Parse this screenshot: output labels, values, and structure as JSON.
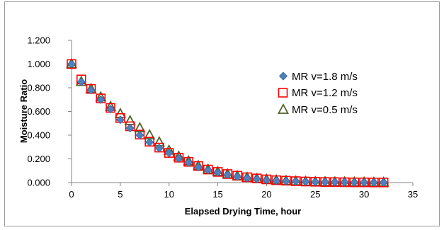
{
  "chart_data": {
    "type": "scatter",
    "title": "",
    "xlabel": "Elapsed Drying Time, hour",
    "ylabel": "Moisture Ratio",
    "xlim": [
      0,
      35
    ],
    "ylim": [
      0,
      1.2
    ],
    "x_ticks": [
      "0",
      "5",
      "10",
      "15",
      "20",
      "25",
      "30",
      "35"
    ],
    "y_ticks": [
      "0.000",
      "0.200",
      "0.400",
      "0.600",
      "0.800",
      "1.000",
      "1.200"
    ],
    "grid": false,
    "legend_position": "right",
    "series": [
      {
        "name": "MR v=1.8 m/s",
        "marker": "diamond",
        "color": "#4F81BD",
        "x": [
          0,
          1,
          2,
          3,
          4,
          5,
          6,
          7,
          8,
          9,
          10,
          11,
          12,
          13,
          14,
          15,
          16,
          17,
          18,
          19,
          20,
          21,
          22,
          23,
          24,
          25,
          26,
          27,
          28,
          29,
          30,
          31,
          32
        ],
        "y": [
          1.0,
          0.85,
          0.78,
          0.7,
          0.62,
          0.53,
          0.46,
          0.4,
          0.34,
          0.29,
          0.25,
          0.205,
          0.17,
          0.13,
          0.105,
          0.085,
          0.065,
          0.05,
          0.038,
          0.03,
          0.022,
          0.017,
          0.013,
          0.01,
          0.008,
          0.006,
          0.005,
          0.004,
          0.003,
          0.002,
          0.002,
          0.001,
          0.001
        ]
      },
      {
        "name": "MR v=1.2 m/s",
        "marker": "square",
        "color": "#FF0000",
        "x": [
          0,
          1,
          2,
          3,
          4,
          5,
          6,
          7,
          8,
          9,
          10,
          11,
          12,
          13,
          14,
          15,
          16,
          17,
          18,
          19,
          20,
          21,
          22,
          23,
          24,
          25,
          26,
          27,
          28,
          29,
          30,
          31,
          32
        ],
        "y": [
          1.0,
          0.87,
          0.79,
          0.71,
          0.63,
          0.545,
          0.475,
          0.405,
          0.345,
          0.295,
          0.25,
          0.21,
          0.175,
          0.14,
          0.11,
          0.09,
          0.072,
          0.058,
          0.045,
          0.035,
          0.027,
          0.02,
          0.016,
          0.012,
          0.009,
          0.007,
          0.005,
          0.004,
          0.003,
          0.002,
          0.002,
          0.001,
          0.001
        ]
      },
      {
        "name": "MR v=0.5 m/s",
        "marker": "triangle",
        "color": "#4F6228",
        "x": [
          0,
          1,
          2,
          3,
          4,
          5,
          6,
          7,
          8,
          9,
          10,
          11,
          12,
          13,
          14,
          15,
          16,
          17,
          18,
          19,
          20,
          21,
          22,
          23,
          24,
          25,
          26,
          27,
          28,
          29,
          30,
          31,
          32
        ],
        "y": [
          1.0,
          0.85,
          0.79,
          0.72,
          0.64,
          0.58,
          0.52,
          0.46,
          0.4,
          0.34,
          0.27,
          0.22,
          0.18,
          0.14,
          0.11,
          0.09,
          0.07,
          0.055,
          0.042,
          0.033,
          0.025,
          0.019,
          0.015,
          0.011,
          0.008,
          0.006,
          0.005,
          0.004,
          0.003,
          0.002,
          0.002,
          0.001,
          0.001
        ]
      }
    ]
  }
}
